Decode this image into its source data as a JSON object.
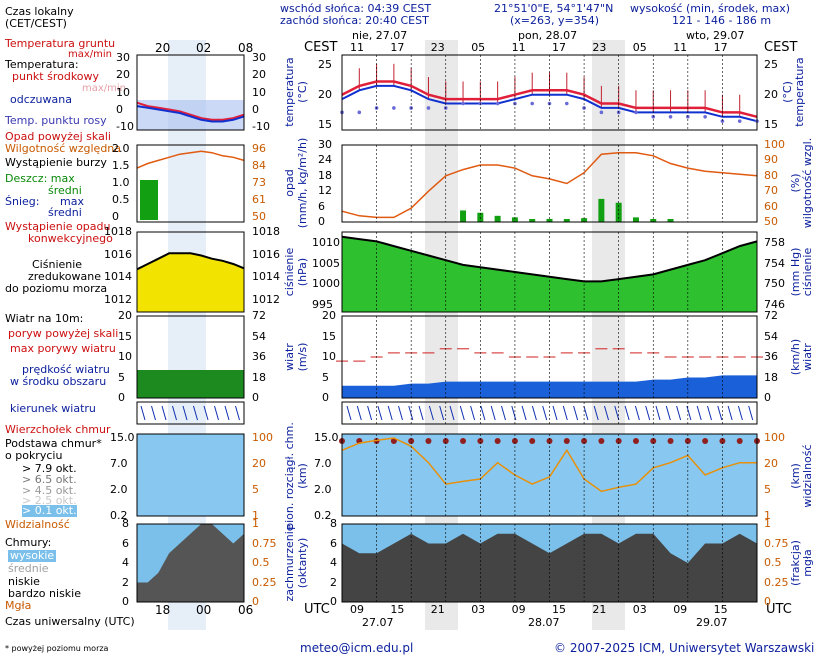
{
  "header": {
    "sunrise": "wschód słońca: 04:39 CEST",
    "sunset": "zachód słońca: 20:40 CEST",
    "coords": "21°51'0\"E, 54°1'47\"N",
    "grid": "(x=263, y=354)",
    "elev_title": "wysokość (min, środek, max)",
    "elev_values": "121 - 146 - 186 m"
  },
  "time_axis": {
    "cest_label": "CEST",
    "utc_label": "UTC",
    "days_top": [
      "nie, 27.07",
      "pon, 28.07",
      "wto, 29.07"
    ],
    "hours_top": [
      "11",
      "17",
      "23",
      "05",
      "11",
      "17",
      "23",
      "05",
      "11",
      "17"
    ],
    "hours_bottom": [
      "09",
      "15",
      "21",
      "03",
      "09",
      "15",
      "21",
      "03",
      "09",
      "15"
    ],
    "dates_bottom": [
      "27.07",
      "28.07",
      "29.07"
    ]
  },
  "legend": {
    "timezone": "Czas lokalny",
    "timezone2": "(CET/CEST)",
    "leg_hours_top": [
      "20",
      "02",
      "08"
    ],
    "leg_hours_bottom": [
      "18",
      "00",
      "06"
    ],
    "utc_time": "Czas uniwersalny (UTC)",
    "footnote": "* powyżej poziomu morza",
    "temp": {
      "ground": "Temperatura gruntu",
      "maxmin": "max/min",
      "temp": "Temperatura:",
      "mid": "punkt środkowy",
      "maxmin2": "max/min",
      "felt": "odczuwana",
      "dew": "Temp. punktu rosy",
      "left_ticks": [
        "30",
        "20",
        "10",
        "0",
        "-10"
      ],
      "right_ticks": [
        "30",
        "20",
        "10",
        "0",
        "-10"
      ]
    },
    "precip": {
      "above": "Opad powyżej skali",
      "humidity": "Wilgotność względna",
      "storm": "Wystąpienie burzy",
      "rain": "Deszcz: max",
      "rain_mean": "średni",
      "snow": "Śnieg:",
      "snow_max": "max",
      "snow_mean": "średni",
      "conv": "Wystąpienie opadu",
      "conv2": "konwekcyjnego",
      "left_ticks": [
        "2.0",
        "1.5",
        "1.0",
        "0.5",
        "0"
      ],
      "right_ticks": [
        "96",
        "84",
        "73",
        "61",
        "50"
      ]
    },
    "pressure": {
      "label1": "Ciśnienie",
      "label2": "zredukowane",
      "label3": "do poziomu morza",
      "left_ticks": [
        "1018",
        "1016",
        "1014",
        "1012"
      ],
      "right_ticks": [
        "1018",
        "1016",
        "1014",
        "1012"
      ]
    },
    "wind": {
      "title": "Wiatr na 10m:",
      "gust_above": "poryw powyżej skali",
      "gust_max": "max porywy wiatru",
      "speed": "prędkość wiatru",
      "speed2": "w środku obszaru",
      "left_ticks": [
        "20",
        "15",
        "10",
        "5",
        "0"
      ],
      "right_ticks": [
        "72",
        "54",
        "36",
        "18",
        "0"
      ]
    },
    "direction": "kierunek wiatru",
    "cloudbase": {
      "tops": "Wierzchołek chmur",
      "base": "Podstawa chmur*",
      "cover": "o pokryciu",
      "ok79": "> 7.9 okt.",
      "ok65": "> 6.5 okt.",
      "ok45": "> 4.5 okt.",
      "ok25": "> 2.5 okt.",
      "ok01": "> 0.1 okt.",
      "vis": "Widzialność",
      "left_ticks": [
        "15.0",
        "7.0",
        "2.0",
        "0.2"
      ],
      "right_ticks": [
        "100",
        "20",
        "5",
        "1"
      ]
    },
    "clouds": {
      "title": "Chmury:",
      "high": "wysokie",
      "mid": "średnie",
      "low": "niskie",
      "vlow": "bardzo niskie",
      "fog": "Mgła",
      "left_ticks": [
        "8",
        "6",
        "4",
        "2",
        "0"
      ],
      "right_ticks": [
        "1",
        "0.75",
        "0.5",
        "0.25",
        "0"
      ]
    }
  },
  "axis_labels": {
    "temp_left": "temperatura",
    "temp_left_unit": "(°C)",
    "temp_right": "temperatura",
    "temp_right_unit": "(°C)",
    "precip_left": "opad",
    "precip_left_unit": "(mm/h, kg/m²/h)",
    "precip_right": "wilgotność wzgl.",
    "precip_right_unit": "(%)",
    "press_left": "ciśnienie",
    "press_left_unit": "(hPa)",
    "press_right": "ciśnienie",
    "press_right_unit": "(mm Hg)",
    "wind_left": "wiatr",
    "wind_left_unit": "(m/s)",
    "wind_right": "wiatr",
    "wind_right_unit": "(km/h)",
    "cloud_left": "pion. rozciągł. chm.",
    "cloud_left_unit": "(km)",
    "cloud_right": "widzialność",
    "cloud_right_unit": "(km)",
    "cover_left": "zachmurzenie",
    "cover_left_unit": "(oktanty)",
    "cover_right": "mgła",
    "cover_right_unit": "(frakcja)"
  },
  "chart_data": {
    "type": "line",
    "x": [
      0,
      3,
      6,
      9,
      12,
      15,
      18,
      21,
      24,
      27,
      30,
      33,
      36,
      39,
      42,
      45,
      48,
      51,
      54,
      57,
      60,
      63,
      66,
      69,
      72
    ],
    "temperature": {
      "ticks_left": [
        "25",
        "20",
        "15"
      ],
      "ticks_right": [
        "25",
        "20",
        "15"
      ],
      "ylim": [
        12,
        29
      ],
      "mid": [
        20,
        22,
        23,
        23,
        22,
        20,
        19,
        19,
        19,
        19,
        20,
        21,
        21,
        21,
        20,
        18,
        18,
        17,
        17,
        17,
        17,
        17,
        16,
        16,
        15
      ],
      "felt": [
        19,
        21,
        22,
        22,
        21,
        19,
        18,
        18,
        18,
        18,
        19,
        20,
        20,
        20,
        19,
        17,
        17,
        16,
        16,
        16,
        16,
        16,
        15,
        15,
        14
      ],
      "dew": [
        16,
        16,
        17,
        17,
        17,
        17,
        17,
        18,
        18,
        18,
        18,
        18,
        18,
        18,
        17,
        16,
        16,
        16,
        15,
        15,
        15,
        15,
        14,
        14,
        14
      ]
    },
    "precip": {
      "ticks_left": [
        "30",
        "24",
        "18",
        "12",
        "6",
        "0"
      ],
      "ticks_right": [
        "100",
        "90",
        "80",
        "70",
        "60",
        "50"
      ],
      "humidity": [
        57,
        54,
        53,
        53,
        59,
        70,
        80,
        84,
        87,
        87,
        85,
        80,
        78,
        75,
        82,
        94,
        95,
        95,
        93,
        88,
        85,
        83,
        82,
        81,
        80
      ],
      "rain_mean": [
        0,
        0,
        0,
        0,
        0,
        0,
        0,
        1.5,
        1.2,
        0.8,
        0.6,
        0.3,
        0.4,
        0.2,
        0.5,
        3,
        2.5,
        0.6,
        0.3,
        0.2,
        0,
        0,
        0,
        0,
        0
      ]
    },
    "pressure": {
      "ticks_left": [
        "1010",
        "1005",
        "1000",
        "995"
      ],
      "ticks_right": [
        "758",
        "754",
        "750",
        "746"
      ],
      "ylim": [
        995,
        1012
      ],
      "values": [
        1011,
        1010.5,
        1010,
        1009,
        1008,
        1007,
        1006,
        1005,
        1004.5,
        1004,
        1003.5,
        1003,
        1002.5,
        1002,
        1001.5,
        1001.5,
        1002,
        1002.5,
        1003,
        1004,
        1005,
        1006,
        1007.5,
        1009,
        1010
      ]
    },
    "wind": {
      "ticks_left": [
        "20",
        "15",
        "10",
        "5",
        "0"
      ],
      "ticks_right": [
        "72",
        "54",
        "36",
        "18",
        "0"
      ],
      "ylim": [
        0,
        20
      ],
      "speed": [
        3,
        3,
        3,
        3,
        3.5,
        3.5,
        4,
        4,
        4,
        4,
        4,
        4,
        4,
        4,
        4,
        4,
        4,
        4,
        4.5,
        4.5,
        5,
        5,
        5.5,
        5.5,
        5.5
      ],
      "gust": [
        9,
        9,
        10,
        11,
        11,
        11,
        12,
        12,
        11,
        11,
        10,
        10,
        10,
        11,
        11,
        12,
        12,
        11,
        11,
        10,
        10,
        10,
        10,
        10,
        10
      ]
    },
    "cloudbase": {
      "ticks_left": [
        "15.0",
        "7.0",
        "2.0",
        "0.2"
      ],
      "ticks_right": [
        "100",
        "20",
        "5",
        "1"
      ],
      "visibility": [
        40,
        60,
        70,
        80,
        50,
        20,
        6,
        7,
        8,
        20,
        10,
        6,
        9,
        40,
        8,
        4,
        5,
        6,
        15,
        20,
        30,
        10,
        15,
        20,
        20
      ]
    },
    "cover": {
      "ticks_left": [
        "8",
        "6",
        "4",
        "2",
        "0"
      ],
      "ticks_right": [
        "1",
        "0.75",
        "0.5",
        "0.25",
        "0"
      ],
      "total": [
        6,
        5,
        5,
        6,
        7,
        6,
        6,
        7,
        6,
        7,
        7,
        6,
        5,
        6,
        7,
        7,
        6,
        7,
        7,
        5,
        4,
        6,
        6,
        7,
        6
      ]
    }
  },
  "footer": {
    "email": "meteo@icm.edu.pl",
    "copyright": "© 2007-2025 ICM, Uniwersytet Warszawski"
  },
  "colors": {
    "temp": "#e0203a",
    "felt": "#1030d0",
    "dew": "#6a6ad8",
    "humidity": "#e05a10",
    "rain": "#12a012",
    "pressure_fill": "#2ec02e",
    "wind_fill": "#1a60d8",
    "cloud_bg": "#88c8f0"
  }
}
